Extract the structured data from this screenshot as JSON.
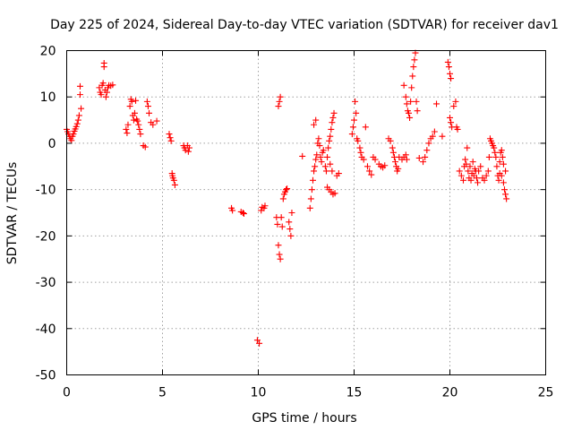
{
  "chart_data": {
    "type": "scatter",
    "title": "Day 225 of 2024, Sidereal Day-to-day VTEC variation (SDTVAR) for receiver dav1",
    "xlabel": "GPS time / hours",
    "ylabel": "SDTVAR / TECUs",
    "xlim": [
      0,
      25
    ],
    "ylim": [
      -50,
      20
    ],
    "xticks": [
      0,
      5,
      10,
      15,
      20,
      25
    ],
    "xtick_labels": [
      "0",
      "5",
      "10",
      "15",
      "20",
      "25"
    ],
    "yticks": [
      20,
      10,
      0,
      -10,
      -20,
      -30,
      -40,
      -50
    ],
    "ytick_labels": [
      "20",
      "10",
      "0",
      "-10",
      "-20",
      "-30",
      "-40",
      "-50"
    ],
    "grid": true,
    "marker": "+",
    "color": "#ff0000",
    "series": [
      {
        "name": "SDTVAR",
        "points": [
          [
            0.0,
            3.0
          ],
          [
            0.05,
            2.5
          ],
          [
            0.1,
            2.0
          ],
          [
            0.15,
            1.5
          ],
          [
            0.2,
            1.0
          ],
          [
            0.25,
            0.6
          ],
          [
            0.3,
            1.5
          ],
          [
            0.35,
            2.0
          ],
          [
            0.4,
            2.6
          ],
          [
            0.45,
            3.1
          ],
          [
            0.5,
            3.6
          ],
          [
            0.55,
            4.2
          ],
          [
            0.6,
            5.0
          ],
          [
            0.65,
            6.0
          ],
          [
            0.7,
            12.3
          ],
          [
            0.7,
            10.5
          ],
          [
            0.75,
            7.5
          ],
          [
            1.7,
            12.0
          ],
          [
            1.75,
            11.0
          ],
          [
            1.8,
            10.5
          ],
          [
            1.85,
            12.5
          ],
          [
            1.9,
            13.0
          ],
          [
            1.95,
            16.5
          ],
          [
            1.95,
            17.3
          ],
          [
            2.0,
            11.5
          ],
          [
            2.05,
            10.0
          ],
          [
            2.1,
            11.0
          ],
          [
            2.15,
            12.0
          ],
          [
            2.2,
            12.5
          ],
          [
            2.3,
            12.4
          ],
          [
            2.4,
            12.6
          ],
          [
            3.1,
            3.0
          ],
          [
            3.15,
            2.2
          ],
          [
            3.2,
            4.0
          ],
          [
            3.3,
            8.0
          ],
          [
            3.35,
            9.5
          ],
          [
            3.4,
            9.0
          ],
          [
            3.45,
            6.0
          ],
          [
            3.5,
            5.0
          ],
          [
            3.55,
            6.5
          ],
          [
            3.6,
            9.2
          ],
          [
            3.65,
            5.2
          ],
          [
            3.7,
            4.8
          ],
          [
            3.75,
            4.0
          ],
          [
            3.8,
            3.0
          ],
          [
            3.85,
            2.0
          ],
          [
            4.0,
            -0.5
          ],
          [
            4.1,
            -0.8
          ],
          [
            4.2,
            9.0
          ],
          [
            4.25,
            8.0
          ],
          [
            4.3,
            6.5
          ],
          [
            4.4,
            4.5
          ],
          [
            4.5,
            4.0
          ],
          [
            4.7,
            4.8
          ],
          [
            5.35,
            2.0
          ],
          [
            5.4,
            1.2
          ],
          [
            5.45,
            0.5
          ],
          [
            5.5,
            -6.5
          ],
          [
            5.52,
            -7.0
          ],
          [
            5.55,
            -7.5
          ],
          [
            5.6,
            -8.0
          ],
          [
            5.65,
            -9.0
          ],
          [
            6.1,
            -0.5
          ],
          [
            6.15,
            -1.0
          ],
          [
            6.2,
            -1.5
          ],
          [
            6.3,
            -0.5
          ],
          [
            6.35,
            -1.8
          ],
          [
            6.4,
            -1.0
          ],
          [
            8.6,
            -14.0
          ],
          [
            8.65,
            -14.5
          ],
          [
            9.1,
            -14.8
          ],
          [
            9.2,
            -15.0
          ],
          [
            9.25,
            -15.2
          ],
          [
            9.95,
            -42.5
          ],
          [
            10.05,
            -43.2
          ],
          [
            10.15,
            -14.5
          ],
          [
            10.2,
            -13.8
          ],
          [
            10.3,
            -14.0
          ],
          [
            10.35,
            -13.5
          ],
          [
            10.95,
            -16.0
          ],
          [
            11.0,
            -17.5
          ],
          [
            11.05,
            -22.0
          ],
          [
            11.1,
            -24.0
          ],
          [
            11.15,
            -25.0
          ],
          [
            11.05,
            8.0
          ],
          [
            11.1,
            9.0
          ],
          [
            11.15,
            10.0
          ],
          [
            11.2,
            -16.0
          ],
          [
            11.25,
            -18.0
          ],
          [
            11.3,
            -12.0
          ],
          [
            11.35,
            -11.0
          ],
          [
            11.4,
            -10.5
          ],
          [
            11.45,
            -10.0
          ],
          [
            11.5,
            -9.8
          ],
          [
            11.6,
            -17.0
          ],
          [
            11.65,
            -18.5
          ],
          [
            11.7,
            -20.0
          ],
          [
            11.75,
            -15.0
          ],
          [
            12.3,
            -2.8
          ],
          [
            12.7,
            -14.0
          ],
          [
            12.75,
            -12.0
          ],
          [
            12.8,
            -10.0
          ],
          [
            12.85,
            -8.0
          ],
          [
            12.9,
            -6.0
          ],
          [
            12.95,
            -5.0
          ],
          [
            13.0,
            -3.5
          ],
          [
            13.05,
            -2.5
          ],
          [
            13.1,
            0.0
          ],
          [
            13.15,
            1.0
          ],
          [
            13.2,
            -0.5
          ],
          [
            13.25,
            -3.0
          ],
          [
            13.3,
            -4.0
          ],
          [
            13.35,
            -2.0
          ],
          [
            13.4,
            -1.5
          ],
          [
            12.9,
            4.0
          ],
          [
            13.0,
            5.0
          ],
          [
            13.5,
            -5.0
          ],
          [
            13.55,
            -6.0
          ],
          [
            13.6,
            -3.0
          ],
          [
            13.65,
            -1.0
          ],
          [
            13.7,
            0.5
          ],
          [
            13.75,
            1.5
          ],
          [
            13.8,
            3.0
          ],
          [
            13.85,
            4.5
          ],
          [
            13.9,
            5.5
          ],
          [
            13.95,
            6.5
          ],
          [
            13.6,
            -9.5
          ],
          [
            13.7,
            -10.0
          ],
          [
            13.8,
            -10.5
          ],
          [
            13.9,
            -11.0
          ],
          [
            14.0,
            -10.8
          ],
          [
            13.75,
            -4.5
          ],
          [
            13.85,
            -6.0
          ],
          [
            14.1,
            -7.0
          ],
          [
            14.2,
            -6.5
          ],
          [
            14.9,
            2.0
          ],
          [
            14.95,
            3.5
          ],
          [
            15.0,
            5.0
          ],
          [
            15.05,
            9.0
          ],
          [
            15.1,
            6.5
          ],
          [
            15.15,
            1.0
          ],
          [
            15.2,
            0.5
          ],
          [
            15.3,
            -1.0
          ],
          [
            15.35,
            -2.0
          ],
          [
            15.4,
            -3.0
          ],
          [
            15.5,
            -3.5
          ],
          [
            15.6,
            3.5
          ],
          [
            15.7,
            -5.0
          ],
          [
            15.8,
            -6.0
          ],
          [
            15.9,
            -6.8
          ],
          [
            16.0,
            -3.0
          ],
          [
            16.1,
            -3.5
          ],
          [
            16.3,
            -4.5
          ],
          [
            16.4,
            -5.0
          ],
          [
            16.5,
            -5.2
          ],
          [
            16.6,
            -4.8
          ],
          [
            16.8,
            1.0
          ],
          [
            16.9,
            0.5
          ],
          [
            17.0,
            -1.0
          ],
          [
            17.05,
            -2.0
          ],
          [
            17.1,
            -3.0
          ],
          [
            17.15,
            -4.0
          ],
          [
            17.2,
            -5.0
          ],
          [
            17.25,
            -6.0
          ],
          [
            17.3,
            -5.5
          ],
          [
            17.35,
            -3.0
          ],
          [
            17.5,
            -3.5
          ],
          [
            17.6,
            -3.0
          ],
          [
            17.7,
            -2.5
          ],
          [
            17.75,
            -3.5
          ],
          [
            17.6,
            12.5
          ],
          [
            17.7,
            10.0
          ],
          [
            17.75,
            8.5
          ],
          [
            17.8,
            7.0
          ],
          [
            17.85,
            6.5
          ],
          [
            17.9,
            5.5
          ],
          [
            17.95,
            9.0
          ],
          [
            18.0,
            12.0
          ],
          [
            18.05,
            14.5
          ],
          [
            18.1,
            16.5
          ],
          [
            18.15,
            18.0
          ],
          [
            18.2,
            19.5
          ],
          [
            18.25,
            9.0
          ],
          [
            18.3,
            7.0
          ],
          [
            18.4,
            -3.2
          ],
          [
            18.6,
            -4.0
          ],
          [
            18.7,
            -3.0
          ],
          [
            18.8,
            -1.5
          ],
          [
            18.9,
            0.0
          ],
          [
            19.0,
            1.0
          ],
          [
            19.1,
            1.5
          ],
          [
            19.2,
            2.5
          ],
          [
            19.3,
            8.5
          ],
          [
            19.6,
            1.5
          ],
          [
            19.9,
            17.5
          ],
          [
            19.95,
            16.5
          ],
          [
            20.0,
            15.0
          ],
          [
            20.05,
            14.0
          ],
          [
            20.0,
            5.5
          ],
          [
            20.05,
            4.5
          ],
          [
            20.1,
            3.5
          ],
          [
            20.2,
            8.0
          ],
          [
            20.3,
            9.0
          ],
          [
            20.35,
            3.5
          ],
          [
            20.4,
            3.0
          ],
          [
            20.5,
            -6.0
          ],
          [
            20.6,
            -7.0
          ],
          [
            20.7,
            -8.0
          ],
          [
            20.75,
            -5.0
          ],
          [
            20.8,
            -3.5
          ],
          [
            20.85,
            -4.5
          ],
          [
            20.9,
            -1.0
          ],
          [
            20.95,
            -6.0
          ],
          [
            21.0,
            -7.5
          ],
          [
            21.05,
            -5.0
          ],
          [
            21.1,
            -8.0
          ],
          [
            21.15,
            -6.5
          ],
          [
            21.2,
            -4.0
          ],
          [
            21.25,
            -7.0
          ],
          [
            21.3,
            -5.5
          ],
          [
            21.35,
            -6.0
          ],
          [
            21.4,
            -7.5
          ],
          [
            21.45,
            -8.5
          ],
          [
            21.5,
            -6.0
          ],
          [
            21.6,
            -5.0
          ],
          [
            21.7,
            -7.5
          ],
          [
            21.8,
            -8.0
          ],
          [
            21.9,
            -7.0
          ],
          [
            22.0,
            -6.0
          ],
          [
            22.05,
            -3.0
          ],
          [
            22.1,
            1.0
          ],
          [
            22.15,
            0.5
          ],
          [
            22.2,
            0.0
          ],
          [
            22.25,
            -0.5
          ],
          [
            22.3,
            -1.0
          ],
          [
            22.35,
            -2.0
          ],
          [
            22.4,
            -3.0
          ],
          [
            22.45,
            -5.0
          ],
          [
            22.5,
            -7.0
          ],
          [
            22.55,
            -8.0
          ],
          [
            22.6,
            -4.0
          ],
          [
            22.65,
            -2.0
          ],
          [
            22.7,
            -1.5
          ],
          [
            22.75,
            -3.0
          ],
          [
            22.8,
            -8.5
          ],
          [
            22.85,
            -10.0
          ],
          [
            22.9,
            -11.0
          ],
          [
            22.95,
            -12.0
          ],
          [
            22.6,
            -6.5
          ],
          [
            22.7,
            -7.0
          ],
          [
            22.8,
            -4.5
          ],
          [
            22.9,
            -6.0
          ]
        ]
      }
    ]
  }
}
